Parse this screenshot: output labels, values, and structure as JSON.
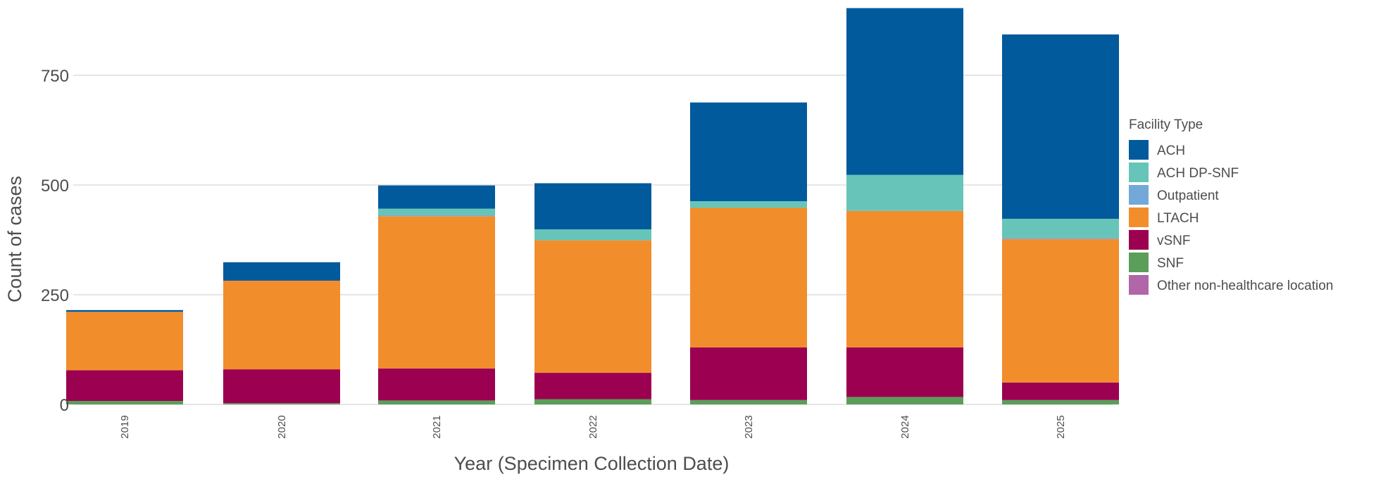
{
  "chart_data": {
    "type": "bar",
    "stacked": true,
    "title": "",
    "xlabel": "Year (Specimen Collection Date)",
    "ylabel": "Count of cases",
    "ylim": [
      0,
      900
    ],
    "yticks": [
      0,
      250,
      500,
      750
    ],
    "ytick_labels": [
      "0",
      "250",
      "500",
      "750"
    ],
    "grid": true,
    "legend_title": "Facility Type",
    "legend_position": "right",
    "categories": [
      "2019",
      "2020",
      "2021",
      "2022",
      "2023",
      "2024",
      "2025"
    ],
    "series": [
      {
        "name": "SNF",
        "color": "#5a9e5a",
        "values": [
          8,
          3,
          9,
          12,
          10,
          17,
          10
        ]
      },
      {
        "name": "vSNF",
        "color": "#9c0050",
        "values": [
          70,
          77,
          73,
          60,
          120,
          113,
          40
        ]
      },
      {
        "name": "LTACH",
        "color": "#f28d2c",
        "values": [
          133,
          202,
          347,
          302,
          318,
          311,
          327
        ]
      },
      {
        "name": "Other non-healthcare location",
        "color": "#b066a8",
        "values": [
          0,
          0,
          0,
          0,
          0,
          0,
          0
        ]
      },
      {
        "name": "Outpatient",
        "color": "#73a8d9",
        "values": [
          0,
          0,
          2,
          0,
          0,
          0,
          3
        ]
      },
      {
        "name": "ACH DP-SNF",
        "color": "#66c5b8",
        "values": [
          0,
          0,
          15,
          25,
          15,
          82,
          43
        ]
      },
      {
        "name": "ACH",
        "color": "#005a9c",
        "values": [
          4,
          42,
          53,
          105,
          225,
          380,
          420
        ]
      }
    ],
    "legend_order": [
      "ACH",
      "ACH DP-SNF",
      "Outpatient",
      "LTACH",
      "vSNF",
      "SNF",
      "Other non-healthcare location"
    ]
  }
}
